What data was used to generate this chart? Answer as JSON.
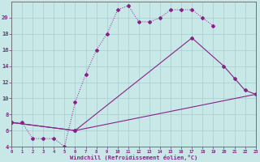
{
  "xlabel": "Windchill (Refroidissement éolien,°C)",
  "background_color": "#c8e8e8",
  "line_color": "#882288",
  "xlim": [
    0,
    23
  ],
  "ylim": [
    4,
    22
  ],
  "xticks": [
    0,
    1,
    2,
    3,
    4,
    5,
    6,
    7,
    8,
    9,
    10,
    11,
    12,
    13,
    14,
    15,
    16,
    17,
    18,
    19,
    20,
    21,
    22,
    23
  ],
  "yticks": [
    4,
    6,
    8,
    10,
    12,
    14,
    16,
    18,
    20
  ],
  "line1_x": [
    0,
    1,
    2,
    3,
    4,
    5,
    6,
    7,
    8,
    9,
    10,
    11,
    12,
    13,
    14,
    15,
    16,
    17,
    18,
    19
  ],
  "line1_y": [
    7,
    7,
    5,
    5,
    5,
    4,
    9.5,
    13,
    16,
    18,
    21,
    21.5,
    19.5,
    19.5,
    20,
    21,
    21,
    21,
    20,
    19
  ],
  "line2_x": [
    0,
    6,
    17,
    20,
    21,
    22,
    23
  ],
  "line2_y": [
    7,
    6,
    17.5,
    14,
    12.5,
    11,
    10.5
  ],
  "line3_x": [
    0,
    6,
    23
  ],
  "line3_y": [
    7,
    6,
    10.5
  ]
}
